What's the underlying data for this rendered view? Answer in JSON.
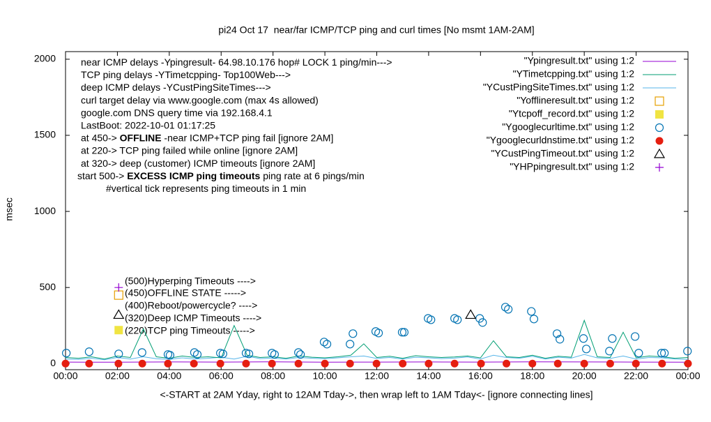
{
  "chart_data": {
    "type": "line",
    "title": "pi24 Oct 17  near/far ICMP/TCP ping and curl times [No msmt 1AM-2AM]",
    "y_label": "msec",
    "x_label": "<-START at 2AM Yday, right to 12AM Tday->, then wrap left to 1AM Tday<- [ignore connecting lines]",
    "xlim": [
      0,
      24
    ],
    "xticks": [
      {
        "value": 0,
        "label": "00:00"
      },
      {
        "value": 2,
        "label": "02:00"
      },
      {
        "value": 4,
        "label": "04:00"
      },
      {
        "value": 6,
        "label": "06:00"
      },
      {
        "value": 8,
        "label": "08:00"
      },
      {
        "value": 10,
        "label": "10:00"
      },
      {
        "value": 12,
        "label": "12:00"
      },
      {
        "value": 14,
        "label": "14:00"
      },
      {
        "value": 16,
        "label": "16:00"
      },
      {
        "value": 18,
        "label": "18:00"
      },
      {
        "value": 20,
        "label": "20:00"
      },
      {
        "value": 22,
        "label": "22:00"
      },
      {
        "value": 24,
        "label": "00:00"
      }
    ],
    "ylim": [
      -40,
      2050
    ],
    "yticks": [
      0,
      500,
      1000,
      1500,
      2000
    ],
    "grid": false,
    "legend_position": "top-right",
    "annotations": [
      [
        "near ICMP delays -Ypingresult- 64.98.10.176 hop# LOCK 1 ping/min--->"
      ],
      [
        "TCP ping delays -YTimetcpping- Top100Web--->"
      ],
      [
        "deep ICMP delays -YCustPingSiteTimes--->"
      ],
      [
        "curl target delay via www.google.com (max 4s allowed)"
      ],
      [
        "google.com DNS query time via 192.168.4.1"
      ],
      [
        "LastBoot: 2022-10-01 01:17:25"
      ],
      [
        "at 450-> ",
        "OFFLINE",
        " -near ICMP+TCP ping fail [ignore 2AM]"
      ],
      [
        "at 220-> TCP ping failed while online [ignore 2AM]"
      ],
      [
        "at 320-> deep (customer) ICMP timeouts [ignore 2AM]"
      ],
      [
        "start 500-> ",
        "EXCESS ICMP ping timeouts",
        " ping rate at 6 pings/min"
      ],
      [
        "#vertical tick represents ping timeouts in 1 min"
      ]
    ],
    "marker_labels": [
      "(500)Hyperping Timeouts ---->",
      "(450)OFFLINE STATE ----->",
      "(400)Reboot/powercycle? ---->",
      "(320)Deep ICMP Timeouts ---->",
      "(220)TCP ping Timeouts ----->"
    ],
    "series": [
      {
        "name": "\"Ypingresult.txt\" using 1:2",
        "style": "line",
        "color": "#9400d3",
        "x": [
          0,
          2,
          4,
          6,
          8,
          10,
          12,
          14,
          16,
          18,
          20,
          22,
          24
        ],
        "values": [
          10,
          9,
          11,
          10,
          12,
          9,
          10,
          11,
          10,
          12,
          11,
          10,
          9
        ]
      },
      {
        "name": "\"YTimetcpping.txt\" using 1:2",
        "style": "line",
        "color": "#009e73",
        "x": [
          0,
          0.5,
          1,
          1.5,
          2,
          2.5,
          3,
          3.5,
          4,
          4.5,
          5,
          5.5,
          6,
          6.5,
          7,
          7.5,
          8,
          8.5,
          9,
          9.5,
          10,
          10.5,
          11,
          11.5,
          12,
          12.5,
          13,
          13.5,
          14,
          14.5,
          15,
          15.5,
          16,
          16.5,
          17,
          17.5,
          18,
          18.5,
          19,
          19.5,
          20,
          20.5,
          21,
          21.5,
          22,
          22.5,
          23,
          23.5,
          24
        ],
        "values": [
          40,
          35,
          45,
          30,
          50,
          40,
          228,
          45,
          35,
          50,
          40,
          45,
          38,
          250,
          55,
          40,
          45,
          35,
          50,
          42,
          38,
          45,
          55,
          130,
          40,
          48,
          35,
          52,
          45,
          40,
          44,
          50,
          38,
          150,
          45,
          40,
          55,
          35,
          48,
          42,
          284,
          45,
          40,
          206,
          38,
          50,
          45,
          35,
          40
        ]
      },
      {
        "name": "\"YCustPingSiteTimes.txt\" using 1:2",
        "style": "line",
        "color": "#56b4e9",
        "x": [
          0,
          0.5,
          1,
          1.5,
          2,
          2.5,
          3,
          3.5,
          4,
          4.5,
          5,
          5.5,
          6,
          6.5,
          7,
          7.5,
          8,
          8.5,
          9,
          9.5,
          10,
          10.5,
          11,
          11.5,
          12,
          12.5,
          13,
          13.5,
          14,
          14.5,
          15,
          15.5,
          16,
          16.5,
          17,
          17.5,
          18,
          18.5,
          19,
          19.5,
          20,
          20.5,
          21,
          21.5,
          22,
          22.5,
          23,
          23.5,
          24
        ],
        "values": [
          30,
          28,
          35,
          25,
          40,
          30,
          45,
          32,
          28,
          38,
          30,
          35,
          42,
          30,
          48,
          33,
          36,
          30,
          40,
          35,
          32,
          38,
          45,
          50,
          34,
          40,
          30,
          42,
          38,
          33,
          36,
          44,
          30,
          55,
          40,
          35,
          48,
          30,
          42,
          36,
          60,
          38,
          34,
          50,
          30,
          40,
          38,
          30,
          28
        ]
      },
      {
        "name": "\"Yofflineresult.txt\" using 1:2",
        "style": "open-square",
        "color": "#e69f00",
        "x": [
          2.05
        ],
        "values": [
          450
        ]
      },
      {
        "name": "\"Ytcpoff_record.txt\" using 1:2",
        "style": "filled-square",
        "color": "#f0e442",
        "x": [
          2.05
        ],
        "values": [
          220
        ]
      },
      {
        "name": "\"Ygooglecurltime.txt\" using 1:2",
        "style": "open-circle",
        "color": "#0072b2",
        "x": [
          0.03,
          0.91,
          2.05,
          2.95,
          3.95,
          4.03,
          4.97,
          5.08,
          5.97,
          6.07,
          6.96,
          7.07,
          7.96,
          8.06,
          8.98,
          9.06,
          9.97,
          10.08,
          10.97,
          11.08,
          11.96,
          12.07,
          12.98,
          13.06,
          13.98,
          14.09,
          15.0,
          15.11,
          15.97,
          16.08,
          16.96,
          17.07,
          17.96,
          18.06,
          18.95,
          19.06,
          19.97,
          20.08,
          20.97,
          21.08,
          21.96,
          22.1,
          22.98,
          23.09,
          23.98
        ],
        "values": [
          69,
          78,
          64,
          73,
          60,
          55,
          73,
          60,
          69,
          64,
          69,
          64,
          69,
          60,
          73,
          60,
          142,
          128,
          128,
          197,
          211,
          201,
          206,
          206,
          297,
          288,
          297,
          288,
          297,
          270,
          371,
          357,
          343,
          293,
          197,
          160,
          165,
          96,
          82,
          165,
          178,
          69,
          69,
          69,
          82
        ]
      },
      {
        "name": "\"Ygooglecurldnstime.txt\" using 1:2",
        "style": "filled-circle",
        "color": "#e51e10",
        "x": [
          0,
          0.91,
          2.04,
          2.96,
          3.95,
          4.95,
          5.97,
          6.96,
          7.96,
          8.98,
          10,
          10.97,
          11.99,
          13,
          14,
          15,
          16.02,
          17,
          18,
          18.98,
          20,
          21,
          21.99,
          23,
          24
        ],
        "values": [
          0,
          0,
          0,
          0,
          0,
          0,
          0,
          0,
          0,
          0,
          0,
          0,
          0,
          0,
          0,
          0,
          0,
          0,
          0,
          0,
          0,
          0,
          0,
          0,
          0
        ]
      },
      {
        "name": "\"YCustPingTimeout.txt\" using 1:2",
        "style": "open-triangle",
        "color": "#000000",
        "x": [
          2.05,
          15.62
        ],
        "values": [
          320,
          320
        ]
      },
      {
        "name": "\"YHPpingresult.txt\" using 1:2",
        "style": "plus",
        "color": "#9400d3",
        "x": [
          2.05
        ],
        "values": [
          500
        ]
      }
    ]
  }
}
